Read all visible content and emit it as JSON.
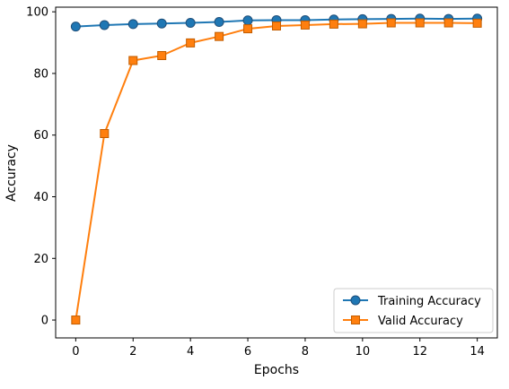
{
  "chart_data": {
    "type": "line",
    "title": "",
    "xlabel": "Epochs",
    "ylabel": "Accuracy",
    "x": [
      0,
      1,
      2,
      3,
      4,
      5,
      6,
      7,
      8,
      9,
      10,
      11,
      12,
      13,
      14
    ],
    "xlim": [
      -0.7,
      14.7
    ],
    "ylim": [
      -5.8,
      101.5
    ],
    "xticks": [
      0,
      2,
      4,
      6,
      8,
      10,
      12,
      14
    ],
    "yticks": [
      0,
      20,
      40,
      60,
      80,
      100
    ],
    "grid": false,
    "legend_position": "lower right",
    "series": [
      {
        "name": "Training Accuracy",
        "color": "#1f77b4",
        "marker": "circle",
        "values": [
          95.2,
          95.7,
          96.0,
          96.2,
          96.4,
          96.7,
          97.2,
          97.3,
          97.3,
          97.5,
          97.6,
          97.7,
          97.8,
          97.7,
          97.8
        ]
      },
      {
        "name": "Valid Accuracy",
        "color": "#ff7f0e",
        "marker": "square",
        "values": [
          0.0,
          60.5,
          84.2,
          85.8,
          89.9,
          92.0,
          94.5,
          95.4,
          95.7,
          96.0,
          96.1,
          96.4,
          96.4,
          96.4,
          96.3
        ]
      }
    ]
  }
}
